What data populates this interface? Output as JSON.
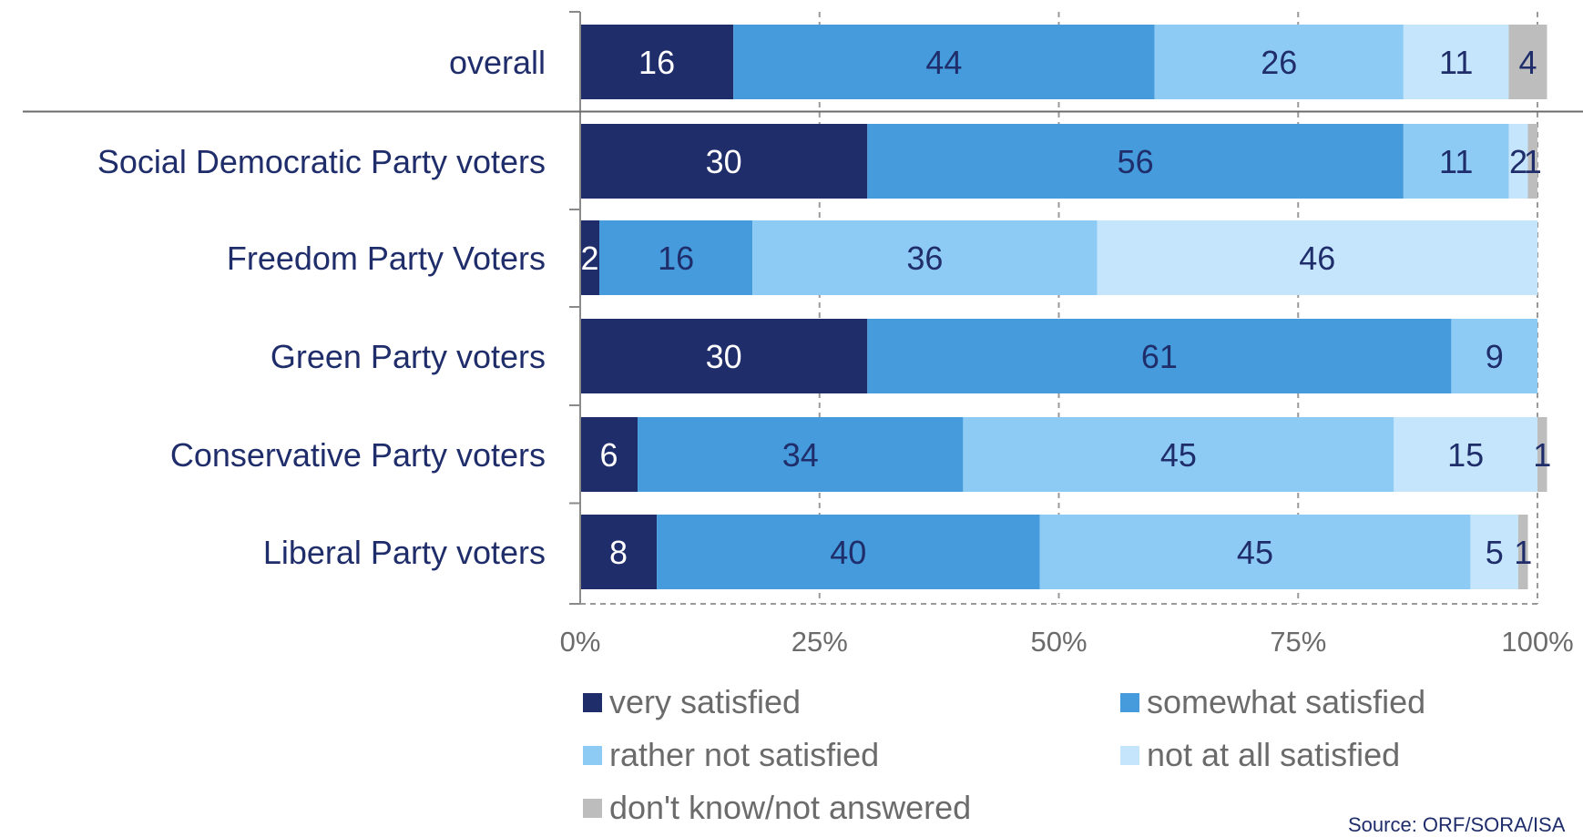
{
  "chart_data": {
    "type": "bar",
    "orientation": "horizontal",
    "stacked": true,
    "categories": [
      "overall",
      "Social Democratic Party voters",
      "Freedom Party Voters",
      "Green Party voters",
      "Conservative Party voters",
      "Liberal Party voters"
    ],
    "series": [
      {
        "name": "very satisfied",
        "color": "#1f2d6b",
        "label_color": "#ffffff",
        "values": [
          16,
          30,
          2,
          30,
          6,
          8
        ]
      },
      {
        "name": "somewhat satisfied",
        "color": "#459bdb",
        "label_color": "#1f2d6b",
        "values": [
          44,
          56,
          16,
          61,
          34,
          40
        ]
      },
      {
        "name": "rather not satisfied",
        "color": "#8ecbf4",
        "label_color": "#1f2d6b",
        "values": [
          26,
          11,
          36,
          9,
          45,
          45
        ]
      },
      {
        "name": "not at all satisfied",
        "color": "#c4e5fb",
        "label_color": "#1f2d6b",
        "values": [
          11,
          2,
          46,
          0,
          15,
          5
        ]
      },
      {
        "name": "don't know/not answered",
        "color": "#bdbdbd",
        "label_color": "#1f2d6b",
        "values": [
          4,
          1,
          0,
          0,
          1,
          1
        ]
      }
    ],
    "xlim": [
      0,
      100
    ],
    "xticks": [
      "0%",
      "25%",
      "50%",
      "75%",
      "100%"
    ],
    "grid": true,
    "legend_position": "bottom",
    "source": "Source: ORF/SORA/ISA"
  }
}
